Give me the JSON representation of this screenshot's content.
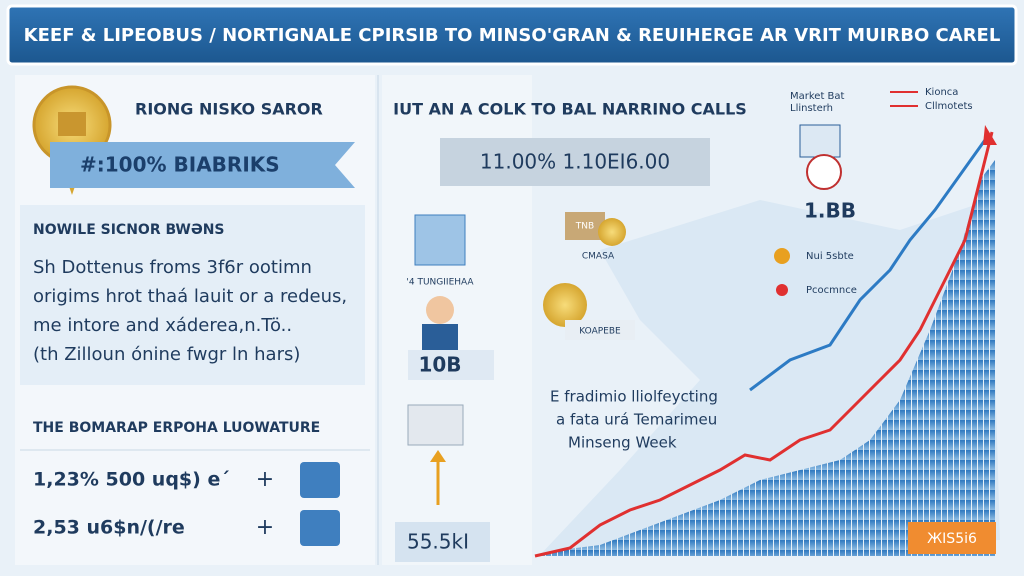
{
  "header": {
    "title": "KEEF & LIPEOBUS / NORTIGNALE CPIRSIB TO MINSO'GRAN & REUIHERGE AR VRIT MUIRBO CAREL"
  },
  "left": {
    "badge_title": "RIONG NISKO SAROR",
    "ribbon": "#:100% BIABRIKS",
    "section_title": "NOWILE SICNOR BWƏNS",
    "paragraph": [
      "Sh Dottenus froms 3f6r ootimn",
      "origims hrot thaá lauit or a redeus,",
      "me intore and xáderea,n.Tö..",
      "(th Zilloun ónine fwgr ln hars)"
    ],
    "list_title": "THE BOMARAP ERPOHA LUOWATURE",
    "rows": [
      {
        "text": "1,23% 500 uq$) e´"
      },
      {
        "text": "2,53 u6$n/(/re"
      }
    ]
  },
  "middle": {
    "title": "IUT AN A COLK TO BAL NARRINO CALLS",
    "stat_box": "11.00% 1.10EI6.00",
    "building_label": "'4 TUNGIIEHAA",
    "person_value": "10B",
    "coin_label_top": "TNB",
    "coin_label": "CMASA",
    "coin_label_bottom": "KOAPEBE",
    "growth_value": "55.5kI",
    "note": [
      "E fradimio lliolfeycting",
      "a fata urá Temarimeu",
      "Minseng Week"
    ]
  },
  "right": {
    "legend": [
      "Market Bat",
      "Llinsterh"
    ],
    "legend2": [
      "Kionca",
      "Cllmotets"
    ],
    "clock_value": "1.BB",
    "items": [
      "Nui 5sbte",
      "Pcocmnce"
    ],
    "badge": "ЖIS5i6"
  }
}
